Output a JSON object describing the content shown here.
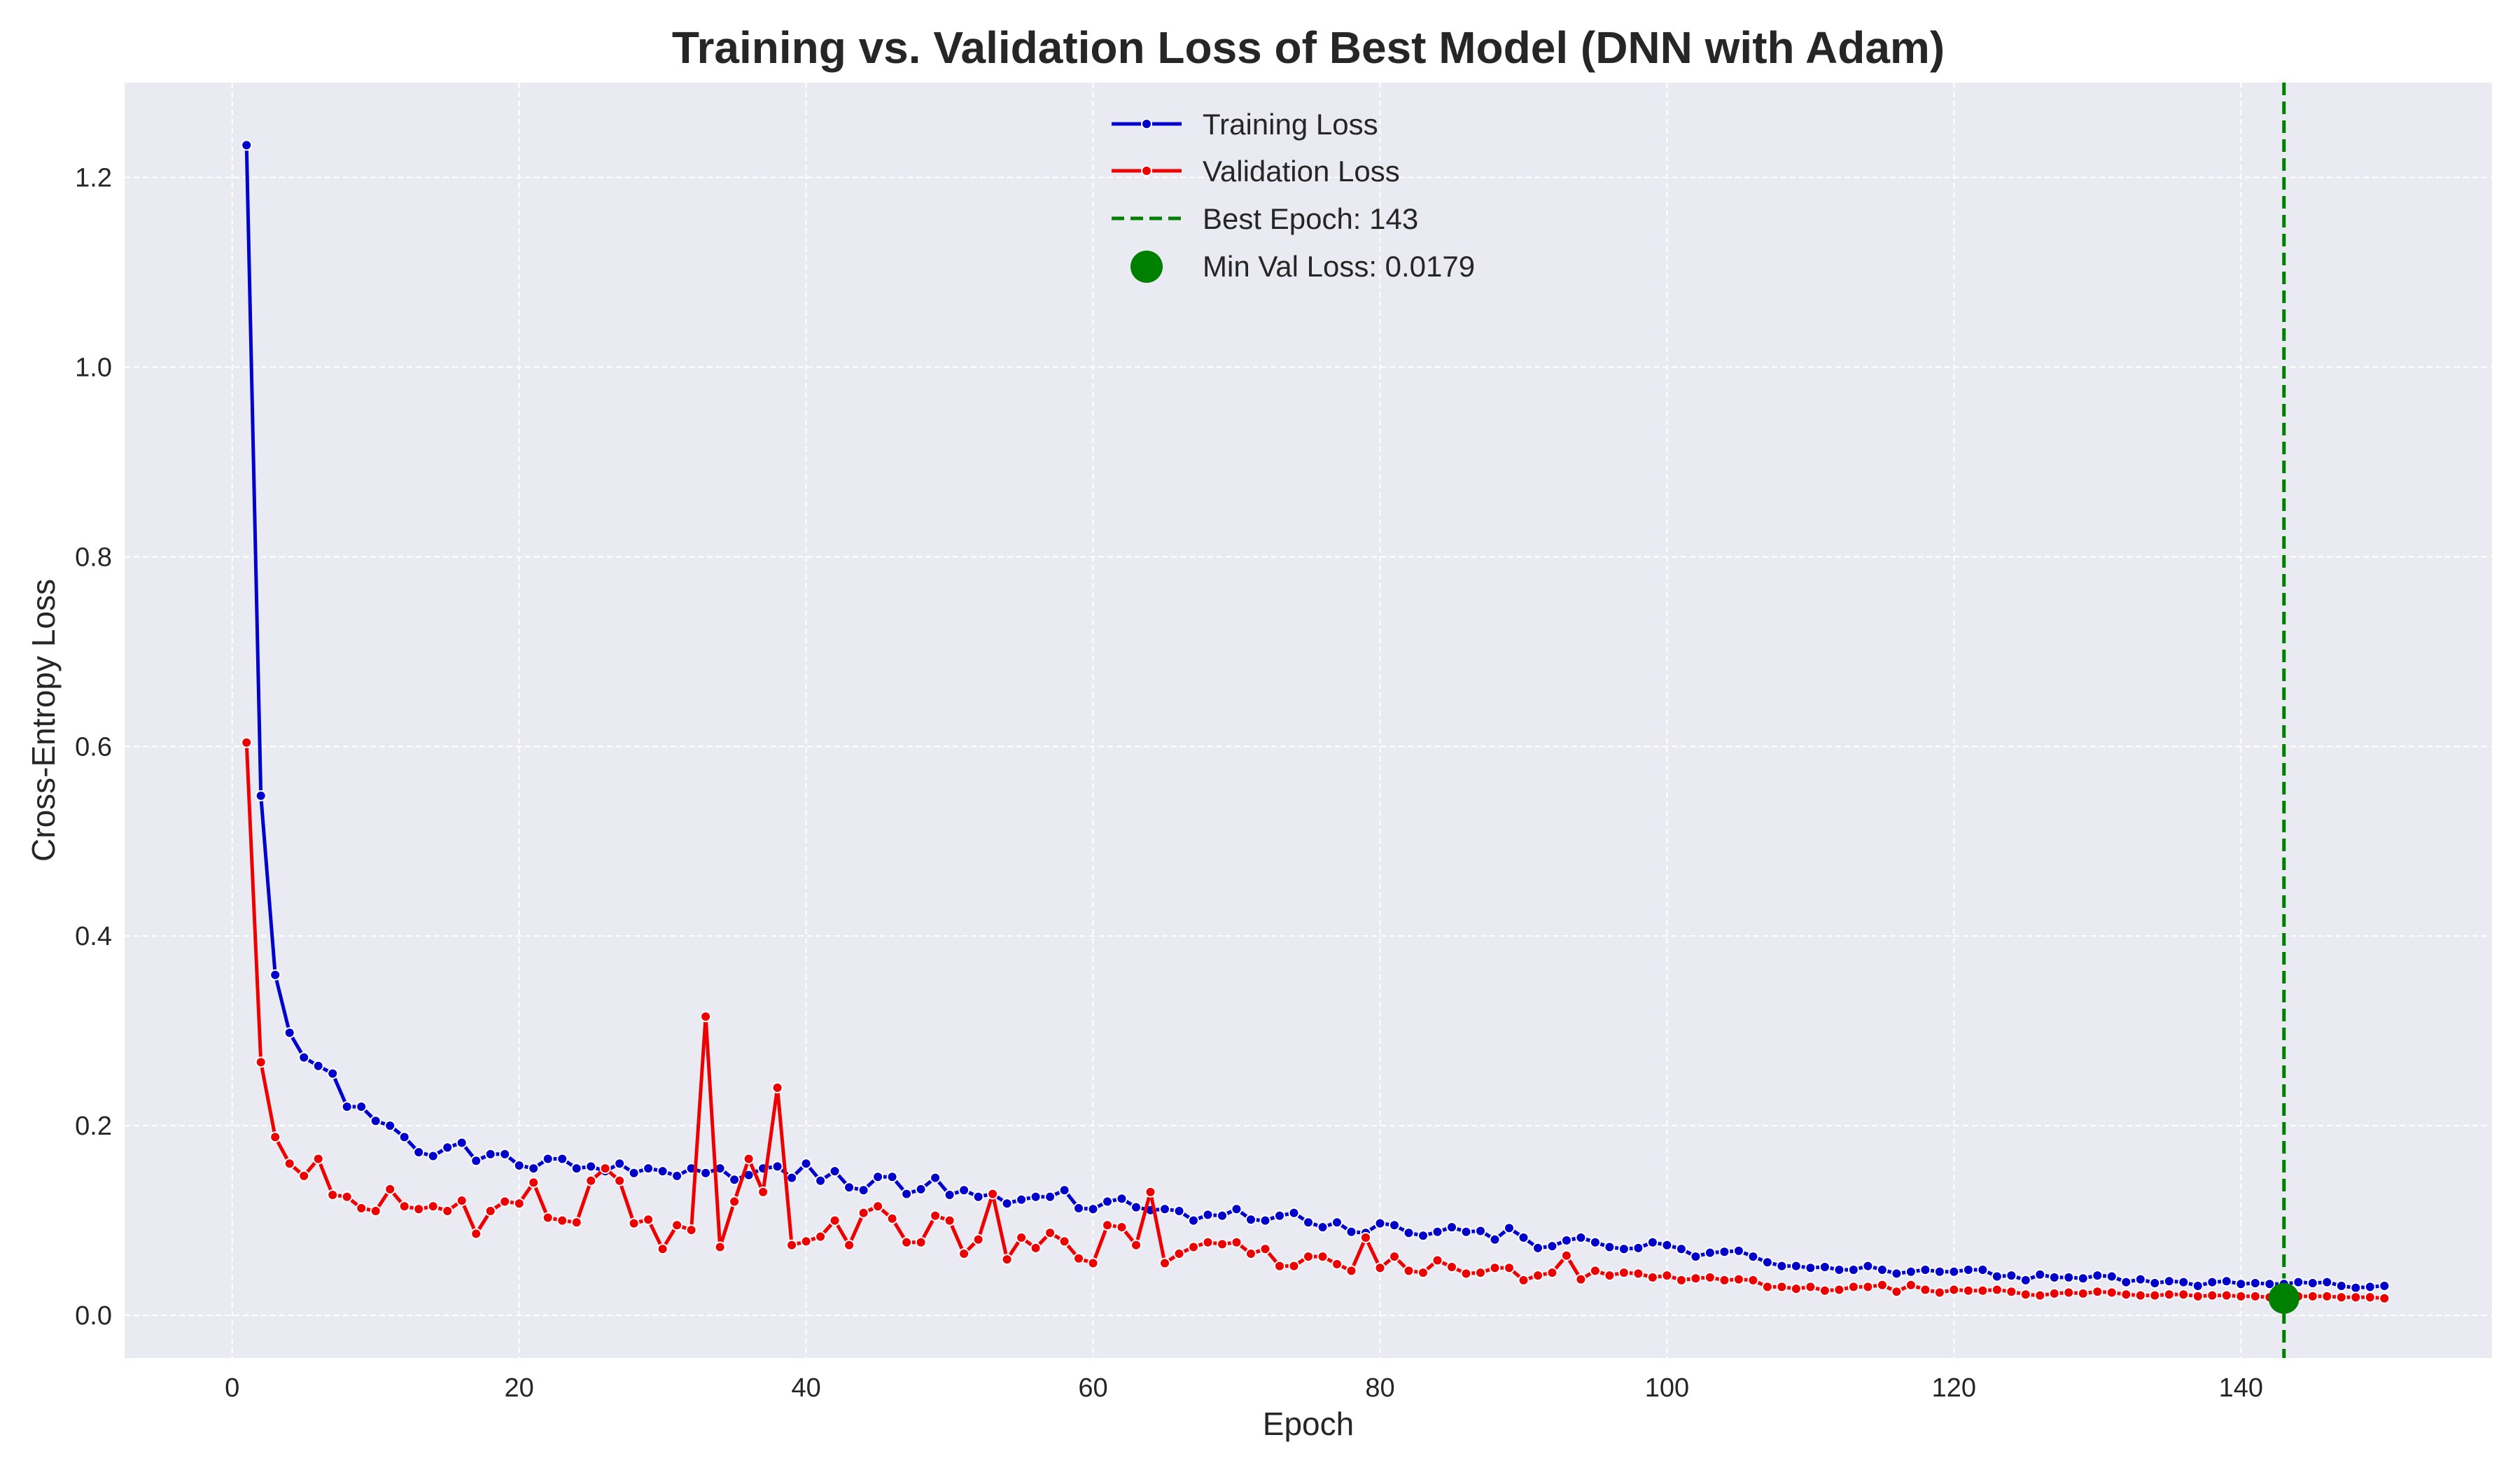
{
  "chart_data": {
    "type": "line",
    "title": "Training vs. Validation Loss of Best Model (DNN with Adam)",
    "xlabel": "Epoch",
    "ylabel": "Cross-Entropy Loss",
    "xlim": [
      -7.5,
      157.5
    ],
    "ylim": [
      -0.045,
      1.3
    ],
    "xticks": [
      0,
      20,
      40,
      60,
      80,
      100,
      120,
      140
    ],
    "yticks": [
      0.0,
      0.2,
      0.4,
      0.6,
      0.8,
      1.0,
      1.2
    ],
    "xtick_labels": [
      "0",
      "20",
      "40",
      "60",
      "80",
      "100",
      "120",
      "140"
    ],
    "ytick_labels": [
      "0.0",
      "0.2",
      "0.4",
      "0.6",
      "0.8",
      "1.0",
      "1.2"
    ],
    "grid": true,
    "legend_position": "top-center",
    "background_color": "#EAEAF2",
    "series": [
      {
        "name": "Training Loss",
        "color": "#0000CC",
        "x_start": 1,
        "values": [
          1.234,
          0.548,
          0.359,
          0.298,
          0.272,
          0.263,
          0.255,
          0.22,
          0.22,
          0.205,
          0.2,
          0.188,
          0.172,
          0.168,
          0.177,
          0.182,
          0.163,
          0.17,
          0.17,
          0.158,
          0.155,
          0.165,
          0.165,
          0.155,
          0.157,
          0.152,
          0.16,
          0.15,
          0.155,
          0.152,
          0.147,
          0.155,
          0.15,
          0.155,
          0.143,
          0.148,
          0.155,
          0.157,
          0.145,
          0.16,
          0.142,
          0.152,
          0.135,
          0.132,
          0.146,
          0.146,
          0.128,
          0.133,
          0.145,
          0.127,
          0.132,
          0.125,
          0.128,
          0.118,
          0.122,
          0.125,
          0.125,
          0.132,
          0.113,
          0.112,
          0.12,
          0.123,
          0.114,
          0.111,
          0.112,
          0.11,
          0.1,
          0.106,
          0.105,
          0.112,
          0.101,
          0.1,
          0.105,
          0.108,
          0.098,
          0.093,
          0.098,
          0.088,
          0.087,
          0.097,
          0.095,
          0.087,
          0.084,
          0.088,
          0.093,
          0.088,
          0.089,
          0.08,
          0.092,
          0.082,
          0.071,
          0.073,
          0.079,
          0.082,
          0.077,
          0.072,
          0.07,
          0.071,
          0.077,
          0.074,
          0.07,
          0.062,
          0.066,
          0.067,
          0.068,
          0.062,
          0.056,
          0.052,
          0.052,
          0.05,
          0.051,
          0.048,
          0.048,
          0.052,
          0.048,
          0.044,
          0.046,
          0.048,
          0.046,
          0.046,
          0.048,
          0.048,
          0.041,
          0.042,
          0.037,
          0.043,
          0.04,
          0.04,
          0.039,
          0.042,
          0.041,
          0.035,
          0.038,
          0.034,
          0.036,
          0.035,
          0.031,
          0.035,
          0.036,
          0.033,
          0.034,
          0.033,
          0.033,
          0.035,
          0.034,
          0.035,
          0.031,
          0.029,
          0.03,
          0.031
        ]
      },
      {
        "name": "Validation Loss",
        "color": "#EE0000",
        "x_start": 1,
        "values": [
          0.604,
          0.267,
          0.188,
          0.16,
          0.147,
          0.165,
          0.127,
          0.125,
          0.113,
          0.11,
          0.133,
          0.115,
          0.112,
          0.115,
          0.11,
          0.121,
          0.086,
          0.11,
          0.12,
          0.118,
          0.14,
          0.103,
          0.1,
          0.098,
          0.142,
          0.155,
          0.142,
          0.097,
          0.101,
          0.07,
          0.095,
          0.09,
          0.315,
          0.072,
          0.12,
          0.165,
          0.13,
          0.24,
          0.074,
          0.078,
          0.083,
          0.1,
          0.074,
          0.108,
          0.115,
          0.102,
          0.077,
          0.077,
          0.105,
          0.1,
          0.065,
          0.08,
          0.128,
          0.059,
          0.082,
          0.071,
          0.087,
          0.078,
          0.06,
          0.055,
          0.095,
          0.093,
          0.074,
          0.13,
          0.055,
          0.065,
          0.072,
          0.077,
          0.075,
          0.077,
          0.065,
          0.07,
          0.052,
          0.052,
          0.062,
          0.062,
          0.054,
          0.047,
          0.082,
          0.05,
          0.062,
          0.047,
          0.045,
          0.058,
          0.051,
          0.044,
          0.045,
          0.05,
          0.05,
          0.037,
          0.042,
          0.045,
          0.063,
          0.038,
          0.047,
          0.042,
          0.045,
          0.044,
          0.04,
          0.042,
          0.037,
          0.039,
          0.04,
          0.037,
          0.038,
          0.037,
          0.03,
          0.03,
          0.028,
          0.03,
          0.026,
          0.027,
          0.03,
          0.03,
          0.032,
          0.025,
          0.032,
          0.027,
          0.024,
          0.027,
          0.026,
          0.026,
          0.027,
          0.025,
          0.022,
          0.021,
          0.023,
          0.024,
          0.023,
          0.025,
          0.024,
          0.022,
          0.021,
          0.021,
          0.022,
          0.022,
          0.02,
          0.021,
          0.021,
          0.02,
          0.02,
          0.019,
          0.018,
          0.02,
          0.02,
          0.02,
          0.019,
          0.019,
          0.019,
          0.018
        ]
      }
    ],
    "best_epoch": {
      "label": "Best Epoch: 143",
      "x": 143,
      "color": "#008000"
    },
    "min_point": {
      "label": "Min Val Loss: 0.0179",
      "x": 143,
      "y": 0.0179,
      "color": "#008000"
    }
  }
}
